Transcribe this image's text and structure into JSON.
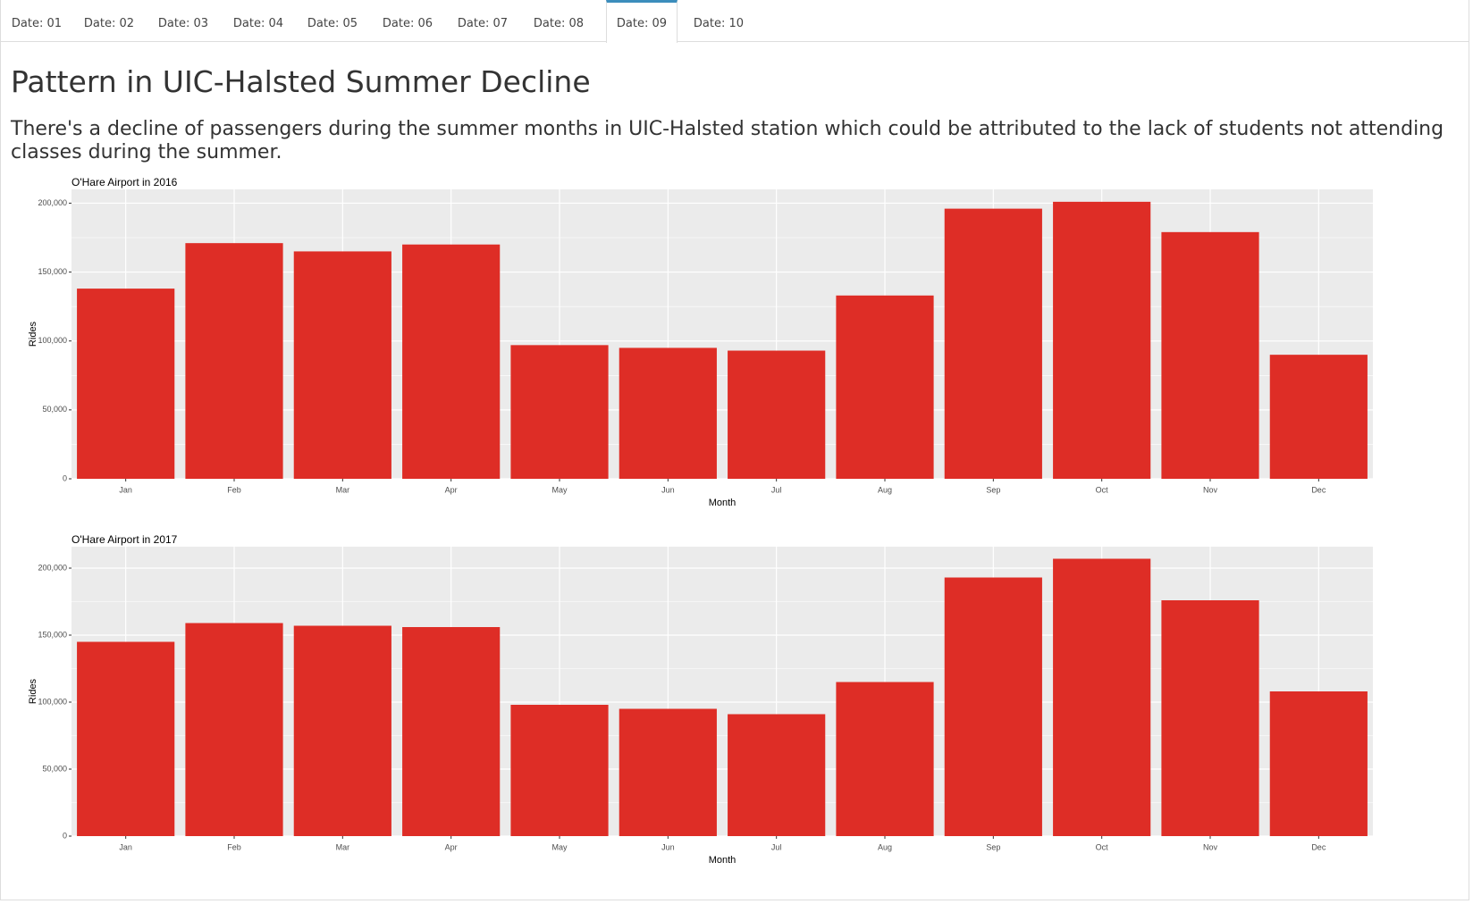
{
  "tabs": [
    {
      "label": "Date: 01",
      "active": false
    },
    {
      "label": "Date: 02",
      "active": false
    },
    {
      "label": "Date: 03",
      "active": false
    },
    {
      "label": "Date: 04",
      "active": false
    },
    {
      "label": "Date: 05",
      "active": false
    },
    {
      "label": "Date: 06",
      "active": false
    },
    {
      "label": "Date: 07",
      "active": false
    },
    {
      "label": "Date: 08",
      "active": false
    },
    {
      "label": "Date: 09",
      "active": true
    },
    {
      "label": "Date: 10",
      "active": false
    }
  ],
  "page": {
    "title": "Pattern in UIC-Halsted Summer Decline",
    "description": "There's a decline of passengers during the summer months in UIC-Halsted station which could be attributed to the lack of students not attending classes during the summer."
  },
  "colors": {
    "bar": "#de2d26",
    "panel": "#ebebeb",
    "grid": "#ffffff",
    "active_tab_accent": "#3c8dbc"
  },
  "chart_data": [
    {
      "type": "bar",
      "title": "O'Hare Airport in 2016",
      "xlabel": "Month",
      "ylabel": "Rides",
      "categories": [
        "Jan",
        "Feb",
        "Mar",
        "Apr",
        "May",
        "Jun",
        "Jul",
        "Aug",
        "Sep",
        "Oct",
        "Nov",
        "Dec"
      ],
      "values": [
        138000,
        171000,
        165000,
        170000,
        97000,
        95000,
        93000,
        133000,
        196000,
        201000,
        179000,
        90000
      ],
      "ylim": [
        0,
        210000
      ],
      "yticks": [
        0,
        50000,
        100000,
        150000,
        200000
      ],
      "ytick_labels": [
        "0",
        "50,000",
        "100,000",
        "150,000",
        "200,000"
      ],
      "grid": true,
      "legend": "none"
    },
    {
      "type": "bar",
      "title": "O'Hare Airport in 2017",
      "xlabel": "Month",
      "ylabel": "Rides",
      "categories": [
        "Jan",
        "Feb",
        "Mar",
        "Apr",
        "May",
        "Jun",
        "Jul",
        "Aug",
        "Sep",
        "Oct",
        "Nov",
        "Dec"
      ],
      "values": [
        145000,
        159000,
        157000,
        156000,
        98000,
        95000,
        91000,
        115000,
        193000,
        207000,
        176000,
        108000
      ],
      "ylim": [
        0,
        216000
      ],
      "yticks": [
        0,
        50000,
        100000,
        150000,
        200000
      ],
      "ytick_labels": [
        "0",
        "50,000",
        "100,000",
        "150,000",
        "200,000"
      ],
      "grid": true,
      "legend": "none"
    }
  ]
}
